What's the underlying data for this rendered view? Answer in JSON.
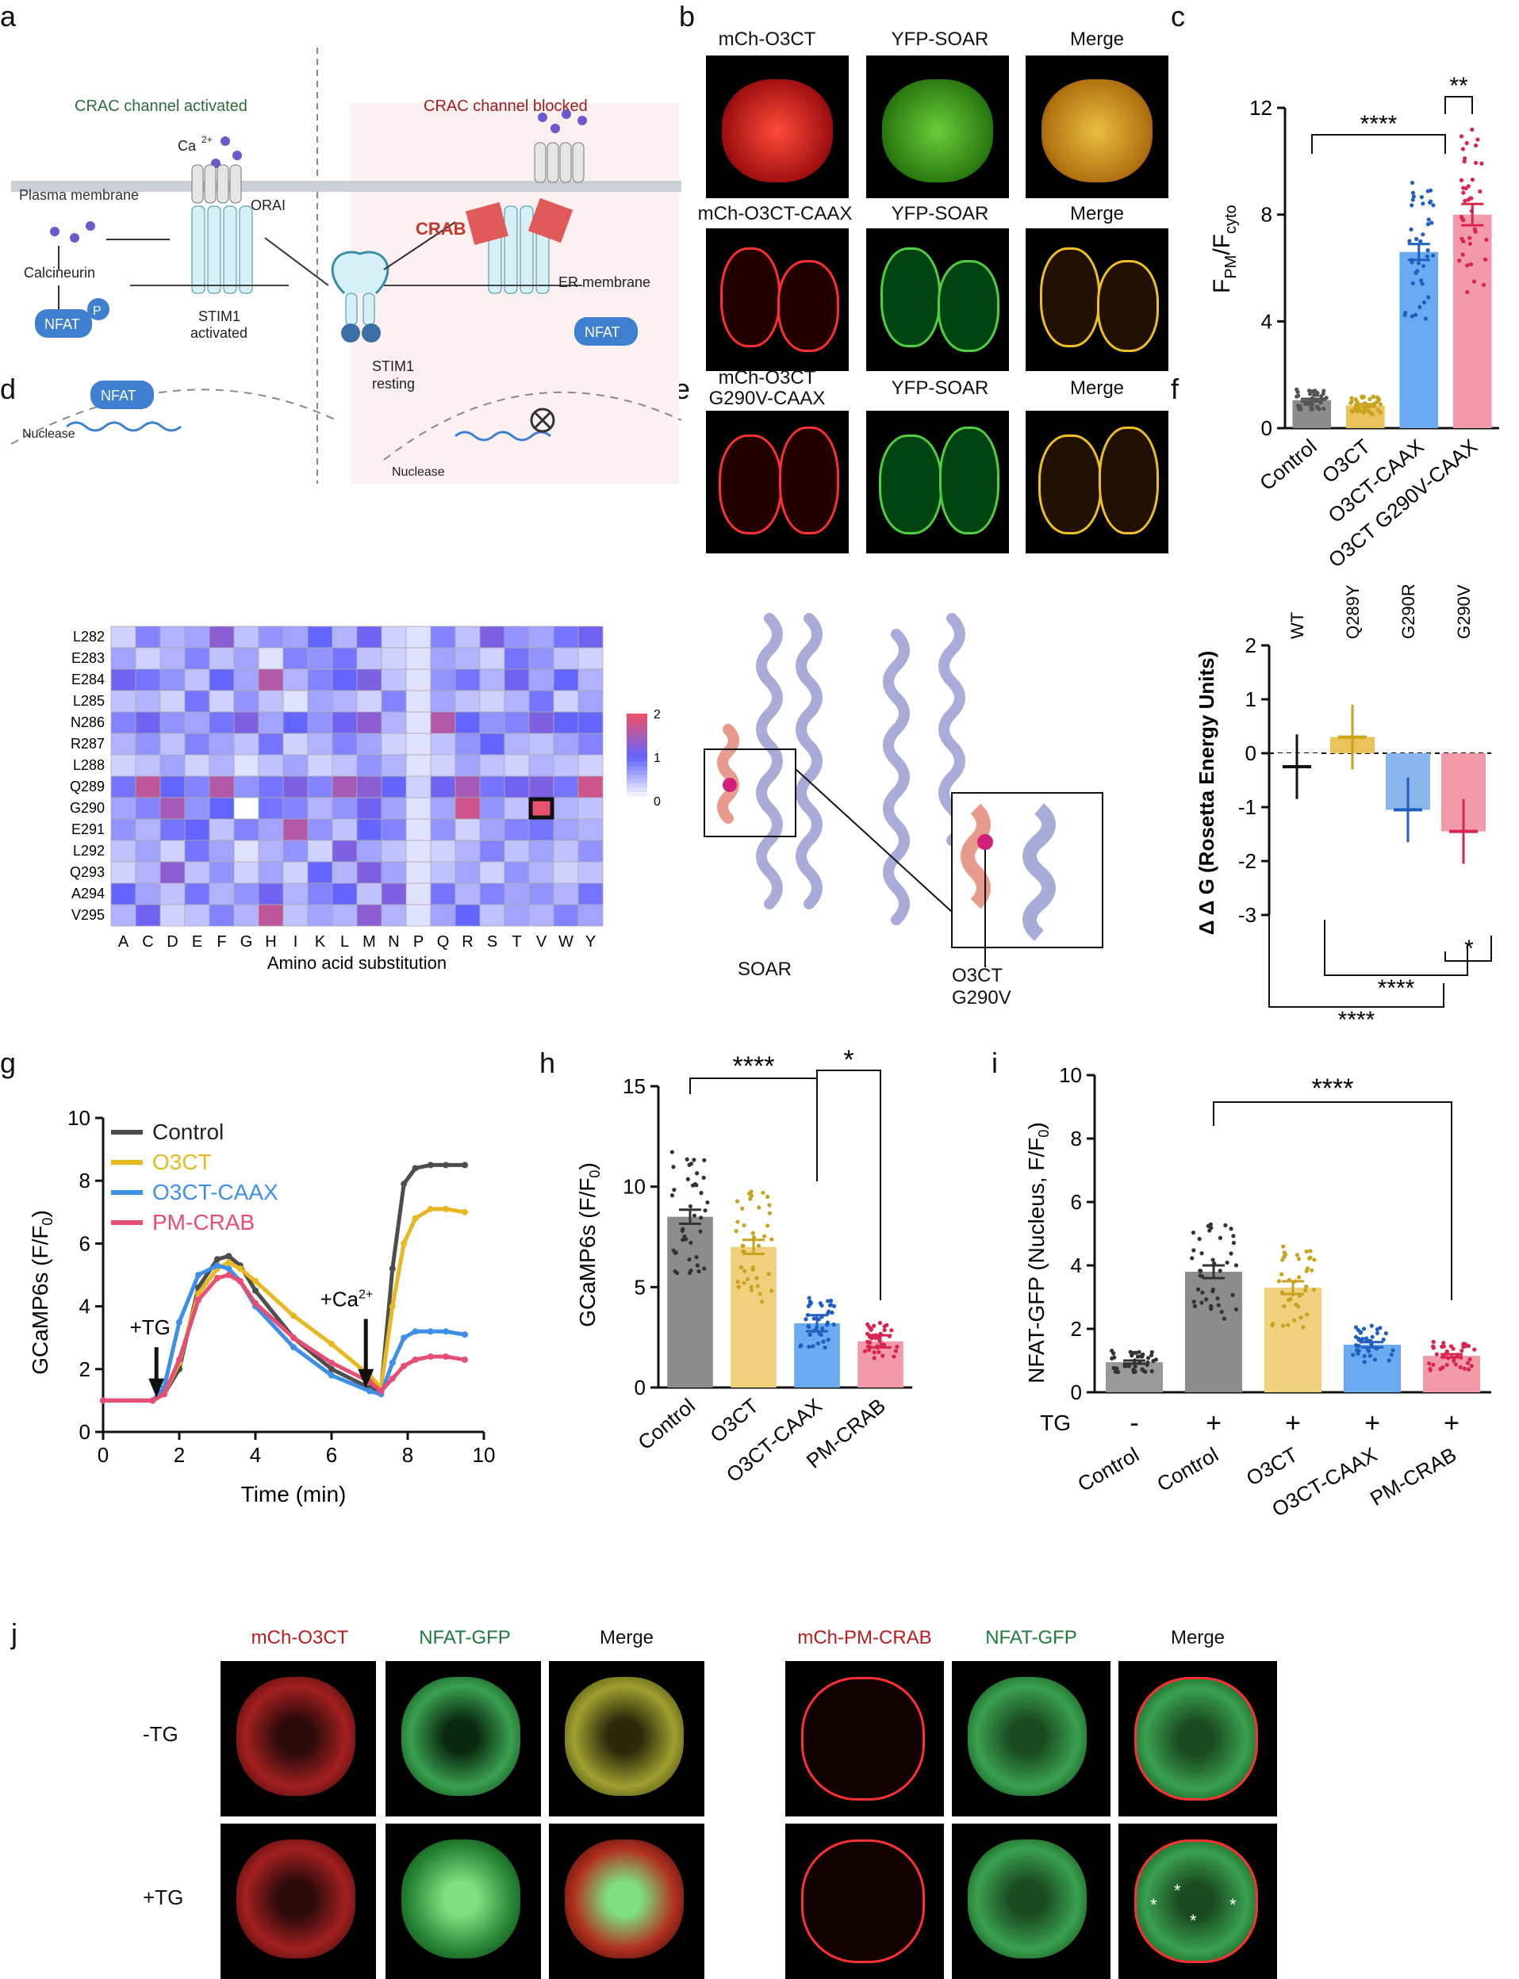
{
  "panels": {
    "a": "a",
    "b": "b",
    "c": "c",
    "d": "d",
    "e": "e",
    "f": "f",
    "g": "g",
    "h": "h",
    "i": "i",
    "j": "j"
  },
  "panel_a": {
    "left_title": "CRAC channel activated",
    "right_title": "CRAC channel blocked",
    "ca_label": "Ca",
    "ca_sup": "2+",
    "plasma_membrane": "Plasma membrane",
    "orai": "ORAI",
    "calcineurin": "Calcineurin",
    "nfat": "NFAT",
    "p": "P",
    "stim1_activated_1": "STIM1",
    "stim1_activated_2": "activated",
    "stim1_resting_1": "STIM1",
    "stim1_resting_2": "resting",
    "crab": "CRAB",
    "er_membrane": "ER membrane",
    "nuclease_left": "Nuclease",
    "nuclease_right": "Nuclease",
    "colors": {
      "left_title": "#2e6b3a",
      "right_title": "#9b1c1c",
      "crab": "#e05a5a",
      "nfat": "#3f7fd0",
      "stim": "#8fd0e0"
    }
  },
  "panel_b": {
    "rows": [
      {
        "titles": [
          "mCh-O3CT",
          "YFP-SOAR",
          "Merge"
        ]
      },
      {
        "titles": [
          "mCh-O3CT-CAAX",
          "YFP-SOAR",
          "Merge"
        ]
      },
      {
        "titles": [
          "mCh-O3CT\nG290V-CAAX",
          "YFP-SOAR",
          "Merge"
        ]
      }
    ],
    "row3_title_line1": "mCh-O3CT",
    "row3_title_line2": "G290V-CAAX"
  },
  "panel_c": {
    "ylabel_main": "F",
    "ylabel_sub1": "PM",
    "ylabel_sub2": "cyto",
    "yticks": [
      "0",
      "4",
      "8",
      "12"
    ],
    "sig_1": "****",
    "sig_2": "**"
  },
  "panel_d": {
    "rows": [
      "L282",
      "E283",
      "E284",
      "L285",
      "N286",
      "R287",
      "L288",
      "Q289",
      "G290",
      "E291",
      "L292",
      "Q293",
      "A294",
      "V295"
    ],
    "cols": [
      "A",
      "C",
      "D",
      "E",
      "F",
      "G",
      "H",
      "I",
      "K",
      "L",
      "M",
      "N",
      "P",
      "Q",
      "R",
      "S",
      "T",
      "V",
      "W",
      "Y"
    ],
    "xlabel": "Amino acid substitution",
    "colorbar_ticks": [
      "2",
      "1",
      "0"
    ]
  },
  "panel_e": {
    "soar": "SOAR",
    "o3ct_1": "O3CT",
    "o3ct_2": "G290V"
  },
  "panel_f": {
    "ylabel": "Δ Δ G (Rosetta Energy Units)",
    "yticks": [
      "2",
      "1",
      "0",
      "-1",
      "-2",
      "-3"
    ],
    "sig_1": "*",
    "sig_2": "****",
    "sig_3": "****"
  },
  "panel_g": {
    "ylabel": "GCaMP6s (F/F",
    "ylabel_sub": "0",
    "xlabel": "Time (min)",
    "yticks": [
      "0",
      "2",
      "4",
      "6",
      "8",
      "10"
    ],
    "xticks": [
      "0",
      "2",
      "4",
      "6",
      "8",
      "10"
    ],
    "tg_label": "+TG",
    "ca_label": "+Ca",
    "ca_sup": "2+"
  },
  "panel_h": {
    "ylabel": "GCaMP6s (F/F",
    "ylabel_sub": "0",
    "yticks": [
      "0",
      "5",
      "10",
      "15"
    ],
    "sig_1": "****",
    "sig_2": "*"
  },
  "panel_i": {
    "ylabel": "NFAT-GFP (Nucleus, F/F",
    "ylabel_sub": "0",
    "yticks": [
      "0",
      "2",
      "4",
      "6",
      "8",
      "10"
    ],
    "tg_row_label": "TG",
    "tg_signs": [
      "-",
      "+",
      "+",
      "+",
      "+"
    ],
    "categories": [
      "Control",
      "Control",
      "O3CT",
      "O3CT-CAAX",
      "PM-CRAB"
    ],
    "sig_1": "****"
  },
  "panel_j": {
    "left_titles": [
      "mCh-O3CT",
      "NFAT-GFP",
      "Merge"
    ],
    "right_titles": [
      "mCh-PM-CRAB",
      "NFAT-GFP",
      "Merge"
    ],
    "row_labels": [
      "-TG",
      "+TG"
    ],
    "asterisk": "*"
  },
  "chart_data": [
    {
      "type": "bar",
      "panel": "c",
      "title": "",
      "xlabel": "",
      "ylabel": "FPM/Fcyto",
      "ylim": [
        0,
        12
      ],
      "categories": [
        "Control",
        "O3CT",
        "O3CT-CAAX",
        "O3CT G290V-CAAX"
      ],
      "values": [
        1.05,
        0.85,
        6.6,
        8.0
      ],
      "errors": [
        0.05,
        0.05,
        0.3,
        0.4
      ],
      "colors": [
        "#8c8c8c",
        "#e9c25a",
        "#6aaaf0",
        "#f29aa8"
      ],
      "dot_colors": [
        "#555555",
        "#c9a21e",
        "#1f5fbf",
        "#d8244f"
      ]
    },
    {
      "type": "heatmap",
      "panel": "d",
      "title": "",
      "xlabel": "Amino acid substitution",
      "ylabel": "",
      "zlim": [
        0,
        2
      ],
      "rows": [
        "L282",
        "E283",
        "E284",
        "L285",
        "N286",
        "R287",
        "L288",
        "Q289",
        "G290",
        "E291",
        "L292",
        "Q293",
        "A294",
        "V295"
      ],
      "cols": [
        "A",
        "C",
        "D",
        "E",
        "F",
        "G",
        "H",
        "I",
        "K",
        "L",
        "M",
        "N",
        "P",
        "Q",
        "R",
        "S",
        "T",
        "V",
        "W",
        "Y"
      ],
      "values": [
        [
          0.3,
          0.8,
          0.5,
          0.6,
          1.3,
          0.4,
          0.7,
          0.6,
          1.0,
          0.5,
          1.1,
          0.3,
          0.2,
          0.8,
          0.4,
          1.2,
          0.7,
          0.6,
          0.9,
          1.1
        ],
        [
          0.6,
          0.3,
          0.5,
          0.8,
          0.4,
          0.6,
          0.2,
          0.8,
          0.7,
          0.9,
          0.4,
          0.3,
          0.2,
          0.6,
          0.5,
          0.3,
          0.9,
          0.7,
          0.4,
          0.3
        ],
        [
          1.1,
          0.9,
          0.7,
          0.4,
          1.0,
          0.6,
          1.6,
          0.5,
          0.8,
          1.0,
          1.2,
          0.4,
          0.2,
          0.7,
          0.9,
          0.5,
          1.1,
          0.6,
          1.0,
          0.5
        ],
        [
          0.4,
          0.5,
          0.3,
          0.9,
          0.3,
          0.7,
          0.4,
          0.2,
          0.6,
          0.5,
          0.3,
          0.8,
          0.2,
          0.6,
          0.4,
          0.3,
          0.5,
          0.9,
          0.3,
          0.6
        ],
        [
          0.8,
          1.1,
          0.7,
          0.6,
          0.9,
          1.2,
          0.6,
          1.0,
          0.7,
          1.1,
          1.3,
          0.5,
          0.2,
          1.6,
          1.0,
          0.7,
          0.8,
          1.2,
          1.0,
          1.0
        ],
        [
          0.5,
          0.7,
          0.4,
          0.8,
          0.6,
          0.4,
          0.9,
          0.3,
          0.5,
          0.8,
          0.6,
          0.3,
          0.2,
          0.4,
          0.7,
          1.0,
          0.5,
          0.4,
          0.6,
          0.8
        ],
        [
          0.3,
          0.4,
          0.6,
          0.3,
          0.5,
          0.2,
          0.4,
          0.6,
          0.3,
          0.4,
          0.7,
          0.5,
          0.2,
          0.3,
          0.6,
          0.4,
          0.3,
          0.5,
          0.4,
          0.3
        ],
        [
          0.9,
          1.7,
          1.0,
          0.8,
          1.6,
          0.7,
          0.9,
          1.2,
          0.8,
          1.5,
          1.3,
          1.0,
          0.3,
          1.1,
          1.5,
          0.9,
          1.1,
          1.2,
          0.9,
          1.8
        ],
        [
          0.6,
          0.8,
          1.5,
          0.7,
          1.0,
          0.0,
          0.9,
          0.8,
          0.5,
          0.7,
          1.1,
          0.6,
          0.2,
          0.6,
          1.8,
          0.7,
          0.4,
          2.0,
          0.5,
          0.4
        ],
        [
          0.7,
          0.5,
          0.9,
          1.0,
          0.4,
          0.8,
          0.6,
          1.6,
          0.7,
          0.4,
          1.0,
          0.8,
          0.2,
          0.7,
          0.3,
          0.6,
          0.8,
          0.9,
          0.6,
          0.5
        ],
        [
          0.4,
          0.6,
          0.3,
          0.9,
          0.6,
          0.2,
          0.5,
          0.7,
          0.3,
          1.2,
          0.6,
          0.4,
          0.2,
          0.3,
          0.5,
          0.8,
          0.4,
          0.6,
          0.4,
          0.7
        ],
        [
          0.3,
          0.5,
          1.3,
          0.4,
          0.7,
          0.3,
          0.6,
          0.3,
          1.0,
          0.5,
          1.2,
          0.6,
          0.2,
          0.4,
          0.6,
          0.3,
          0.7,
          0.5,
          0.3,
          0.4
        ],
        [
          1.0,
          0.6,
          0.4,
          0.9,
          0.5,
          0.7,
          1.1,
          0.5,
          0.8,
          1.0,
          0.4,
          1.2,
          0.2,
          0.9,
          0.5,
          0.8,
          0.6,
          0.7,
          0.5,
          0.9
        ],
        [
          0.5,
          1.1,
          0.3,
          0.4,
          0.8,
          0.5,
          1.7,
          0.4,
          0.6,
          0.5,
          1.3,
          0.5,
          0.2,
          0.6,
          1.0,
          0.4,
          0.6,
          0.5,
          0.8,
          0.6
        ]
      ],
      "highlight": {
        "row": "G290",
        "col": "V"
      }
    },
    {
      "type": "bar",
      "panel": "f",
      "title": "",
      "xlabel": "",
      "ylabel": "Δ Δ G (Rosetta Energy Units)",
      "ylim": [
        -3,
        2
      ],
      "categories": [
        "WT",
        "Q289Y",
        "G290R",
        "G290V"
      ],
      "values": [
        -0.25,
        0.3,
        -1.05,
        -1.45
      ],
      "colors": [
        "#ffffff",
        "#e9c25a",
        "#8ab6ee",
        "#f29aa8"
      ],
      "line_colors": [
        "#111111",
        "#c9a21e",
        "#1f5fbf",
        "#d8244f"
      ]
    },
    {
      "type": "line",
      "panel": "g",
      "title": "",
      "xlabel": "Time (min)",
      "ylabel": "GCaMP6s (F/F0)",
      "xlim": [
        0,
        10
      ],
      "ylim": [
        0,
        10
      ],
      "legend": "top-left",
      "x": [
        0,
        1.3,
        1.6,
        2.0,
        2.5,
        3.0,
        3.3,
        3.6,
        4.0,
        5.0,
        6.0,
        7.0,
        7.3,
        7.6,
        7.9,
        8.2,
        8.6,
        9.0,
        9.5
      ],
      "series": [
        {
          "name": "Control",
          "color": "#4d4d4d",
          "values": [
            1.0,
            1.0,
            1.2,
            2.0,
            4.6,
            5.5,
            5.6,
            5.3,
            4.5,
            3.0,
            2.0,
            1.4,
            1.3,
            5.2,
            7.9,
            8.4,
            8.5,
            8.5,
            8.5
          ]
        },
        {
          "name": "O3CT",
          "color": "#e8b820",
          "values": [
            1.0,
            1.0,
            1.2,
            2.2,
            4.4,
            5.2,
            5.4,
            5.2,
            4.8,
            3.7,
            2.8,
            1.8,
            1.4,
            4.0,
            6.0,
            6.8,
            7.1,
            7.1,
            7.0
          ]
        },
        {
          "name": "O3CT-CAAX",
          "color": "#3d8fe8",
          "values": [
            1.0,
            1.0,
            1.4,
            3.5,
            5.0,
            5.3,
            5.2,
            4.8,
            4.0,
            2.7,
            1.8,
            1.3,
            1.2,
            2.2,
            3.0,
            3.2,
            3.2,
            3.2,
            3.1
          ]
        },
        {
          "name": "PM-CRAB",
          "color": "#e84d73",
          "values": [
            1.0,
            1.0,
            1.2,
            2.3,
            4.2,
            4.9,
            5.0,
            4.8,
            4.1,
            3.0,
            2.2,
            1.6,
            1.3,
            1.7,
            2.1,
            2.3,
            2.4,
            2.4,
            2.3
          ]
        }
      ]
    },
    {
      "type": "bar",
      "panel": "h",
      "title": "",
      "xlabel": "",
      "ylabel": "GCaMP6s (F/F0)",
      "ylim": [
        0,
        15
      ],
      "categories": [
        "Control",
        "O3CT",
        "O3CT-CAAX",
        "PM-CRAB"
      ],
      "values": [
        8.5,
        7.0,
        3.2,
        2.3
      ],
      "errors": [
        0.35,
        0.35,
        0.4,
        0.3
      ],
      "colors": [
        "#8c8c8c",
        "#f0d07c",
        "#6aaaf0",
        "#f29aa8"
      ],
      "dot_colors": [
        "#333333",
        "#c9a21e",
        "#1f5fbf",
        "#d8244f"
      ]
    },
    {
      "type": "bar",
      "panel": "i",
      "title": "",
      "xlabel": "",
      "ylabel": "NFAT-GFP (Nucleus, F/F0)",
      "ylim": [
        0,
        10
      ],
      "categories": [
        "Control",
        "Control",
        "O3CT",
        "O3CT-CAAX",
        "PM-CRAB"
      ],
      "tg": [
        "-",
        "+",
        "+",
        "+",
        "+"
      ],
      "values": [
        0.95,
        3.8,
        3.3,
        1.5,
        1.15
      ],
      "errors": [
        0.05,
        0.2,
        0.2,
        0.08,
        0.05
      ],
      "colors": [
        "#9a9a9a",
        "#8c8c8c",
        "#f0d07c",
        "#6aaaf0",
        "#f29aa8"
      ],
      "dot_colors": [
        "#333333",
        "#333333",
        "#c9a21e",
        "#1f5fbf",
        "#d8244f"
      ]
    }
  ]
}
